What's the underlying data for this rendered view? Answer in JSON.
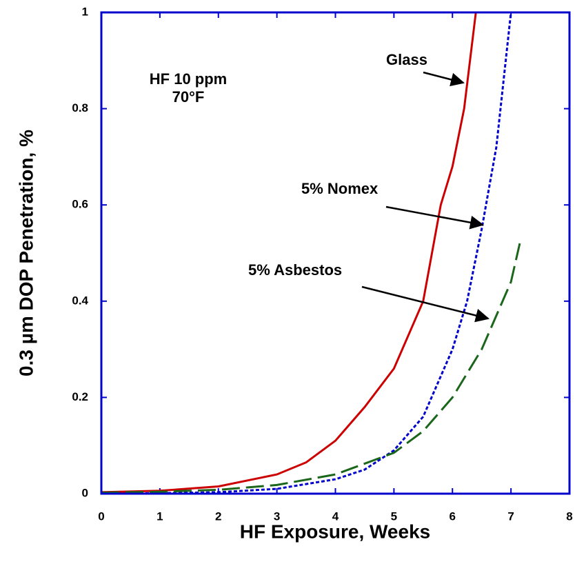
{
  "chart_data": {
    "type": "line",
    "x_label": "HF Exposure, Weeks",
    "y_label": "0.3 µm DOP Penetration, %",
    "annotations": [
      "HF 10 ppm",
      "70°F",
      "Glass",
      "5% Nomex",
      "5% Asbestos"
    ],
    "xlim": [
      0,
      8
    ],
    "xticks": [
      0,
      1,
      2,
      3,
      4,
      5,
      6,
      7,
      8
    ],
    "ylim": [
      0,
      1
    ],
    "yticks": [
      0,
      0.2,
      0.4,
      0.6,
      0.8,
      1
    ],
    "frame_color": "#0000cc",
    "series": [
      {
        "name": "Glass",
        "color": "#cc0000",
        "dash": "solid",
        "x": [
          0,
          1,
          2,
          3,
          3.5,
          4,
          4.5,
          5,
          5.5,
          5.8,
          6.0,
          6.2,
          6.4
        ],
        "values": [
          0.003,
          0.006,
          0.015,
          0.04,
          0.065,
          0.11,
          0.18,
          0.26,
          0.4,
          0.6,
          0.68,
          0.8,
          1.0
        ]
      },
      {
        "name": "5% Nomex",
        "color": "#0000cc",
        "dash": "dotted",
        "x": [
          0,
          1,
          2,
          3,
          4,
          4.5,
          5,
          5.5,
          6,
          6.25,
          6.5,
          6.75,
          7
        ],
        "values": [
          0,
          0.001,
          0.003,
          0.01,
          0.03,
          0.05,
          0.09,
          0.16,
          0.3,
          0.4,
          0.55,
          0.72,
          1.0
        ]
      },
      {
        "name": "5% Asbestos",
        "color": "#1a661a",
        "dash": "dashed",
        "x": [
          0,
          1,
          2,
          3,
          4,
          5,
          5.5,
          6,
          6.5,
          7,
          7.15
        ],
        "values": [
          0.002,
          0.004,
          0.008,
          0.018,
          0.04,
          0.085,
          0.13,
          0.2,
          0.3,
          0.44,
          0.52
        ]
      }
    ]
  }
}
